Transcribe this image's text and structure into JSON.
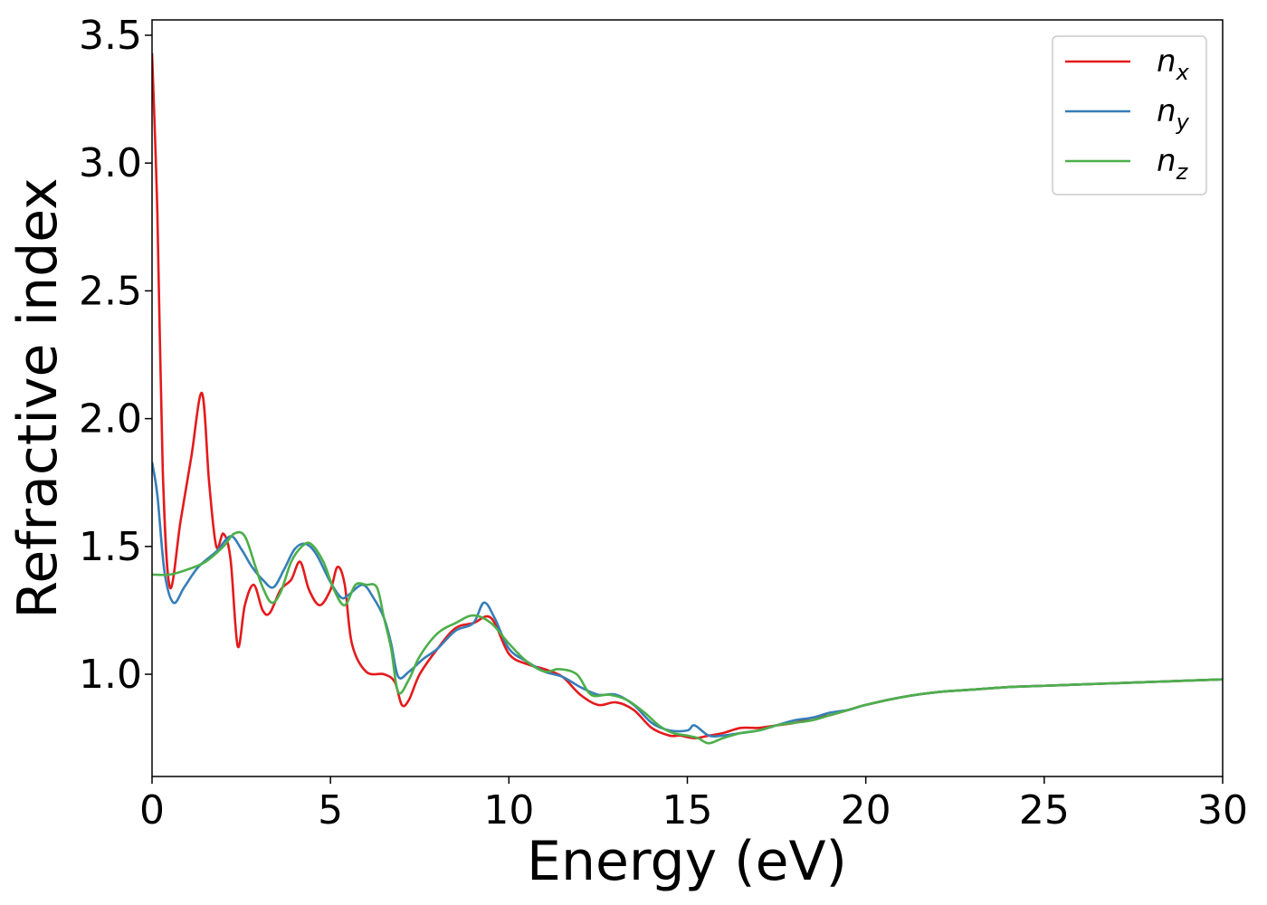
{
  "chart_data": {
    "type": "line",
    "xlabel": "Energy (eV)",
    "ylabel": "Refractive index",
    "xlim": [
      0,
      30
    ],
    "ylim": [
      0.6,
      3.56
    ],
    "xticks": [
      0,
      5,
      10,
      15,
      20,
      25,
      30
    ],
    "yticks": [
      1.0,
      1.5,
      2.0,
      2.5,
      3.0,
      3.5
    ],
    "xtick_labels": [
      "0",
      "5",
      "10",
      "15",
      "20",
      "25",
      "30"
    ],
    "ytick_labels": [
      "1.0",
      "1.5",
      "2.0",
      "2.5",
      "3.0",
      "3.5"
    ],
    "grid": false,
    "legend_position": "top-right",
    "series": [
      {
        "name": "n_x",
        "label_base": "n",
        "label_sub": "x",
        "color": "#e41a1c",
        "x": [
          0,
          0.15,
          0.3,
          0.5,
          0.8,
          1.1,
          1.4,
          1.6,
          1.8,
          2.0,
          2.2,
          2.4,
          2.6,
          2.85,
          3.1,
          3.3,
          3.6,
          3.9,
          4.15,
          4.4,
          4.7,
          5.0,
          5.2,
          5.4,
          5.6,
          6.0,
          6.5,
          6.8,
          7.0,
          7.2,
          7.5,
          8.0,
          8.5,
          9.0,
          9.5,
          10.0,
          10.5,
          11.0,
          11.5,
          12.0,
          12.5,
          13.0,
          13.5,
          14.0,
          14.5,
          14.8,
          15.2,
          15.6,
          16.0,
          16.5,
          17.0,
          17.5,
          18.0,
          18.5,
          19.0,
          19.5,
          20.0,
          21.0,
          22.0,
          23.0,
          24.0,
          25.0,
          26.0,
          27.0,
          28.0,
          29.0,
          30.0
        ],
        "values": [
          3.43,
          2.8,
          1.8,
          1.34,
          1.6,
          1.85,
          2.1,
          1.75,
          1.5,
          1.55,
          1.45,
          1.11,
          1.27,
          1.35,
          1.25,
          1.24,
          1.33,
          1.37,
          1.44,
          1.33,
          1.27,
          1.33,
          1.42,
          1.35,
          1.12,
          1.01,
          1.0,
          0.97,
          0.88,
          0.9,
          1.0,
          1.1,
          1.18,
          1.2,
          1.22,
          1.08,
          1.04,
          1.02,
          0.99,
          0.92,
          0.88,
          0.89,
          0.86,
          0.79,
          0.76,
          0.76,
          0.75,
          0.76,
          0.77,
          0.79,
          0.79,
          0.8,
          0.81,
          0.83,
          0.84,
          0.86,
          0.88,
          0.91,
          0.93,
          0.94,
          0.95,
          0.955,
          0.96,
          0.965,
          0.97,
          0.975,
          0.98
        ]
      },
      {
        "name": "n_y",
        "label_base": "n",
        "label_sub": "y",
        "color": "#377eb8",
        "x": [
          0,
          0.15,
          0.35,
          0.6,
          0.9,
          1.3,
          1.8,
          2.2,
          2.5,
          2.8,
          3.1,
          3.4,
          3.7,
          4.0,
          4.3,
          4.6,
          5.0,
          5.3,
          5.5,
          5.9,
          6.2,
          6.5,
          6.7,
          6.9,
          7.2,
          7.6,
          8.0,
          8.5,
          9.0,
          9.3,
          9.6,
          10.0,
          10.5,
          11.0,
          11.5,
          12.0,
          12.5,
          13.0,
          13.5,
          14.0,
          14.5,
          15.0,
          15.2,
          15.6,
          16.0,
          16.5,
          17.0,
          17.5,
          18.0,
          18.5,
          19.0,
          19.5,
          20.0,
          21.0,
          22.0,
          23.0,
          24.0,
          25.0,
          26.0,
          27.0,
          28.0,
          29.0,
          30.0
        ],
        "values": [
          1.83,
          1.7,
          1.4,
          1.28,
          1.34,
          1.42,
          1.48,
          1.54,
          1.49,
          1.42,
          1.37,
          1.34,
          1.41,
          1.49,
          1.51,
          1.47,
          1.36,
          1.3,
          1.31,
          1.35,
          1.3,
          1.22,
          1.12,
          0.99,
          1.01,
          1.06,
          1.1,
          1.17,
          1.2,
          1.28,
          1.22,
          1.1,
          1.05,
          1.01,
          0.99,
          0.95,
          0.92,
          0.92,
          0.88,
          0.81,
          0.78,
          0.78,
          0.8,
          0.76,
          0.76,
          0.77,
          0.78,
          0.8,
          0.82,
          0.83,
          0.85,
          0.86,
          0.88,
          0.91,
          0.93,
          0.94,
          0.95,
          0.955,
          0.96,
          0.965,
          0.97,
          0.975,
          0.98
        ]
      },
      {
        "name": "n_z",
        "label_base": "n",
        "label_sub": "z",
        "color": "#4daf4a",
        "x": [
          0,
          0.5,
          1.0,
          1.5,
          2.0,
          2.3,
          2.6,
          2.9,
          3.1,
          3.35,
          3.6,
          3.9,
          4.2,
          4.45,
          4.8,
          5.1,
          5.4,
          5.7,
          6.0,
          6.3,
          6.5,
          6.7,
          6.9,
          7.2,
          7.5,
          8.0,
          8.5,
          9.0,
          9.5,
          10.0,
          10.5,
          11.0,
          11.4,
          11.9,
          12.3,
          12.8,
          13.3,
          13.8,
          14.2,
          14.6,
          15.0,
          15.3,
          15.6,
          16.0,
          16.5,
          17.0,
          17.5,
          18.0,
          18.5,
          19.0,
          19.5,
          20.0,
          21.0,
          22.0,
          23.0,
          24.0,
          25.0,
          26.0,
          27.0,
          28.0,
          29.0,
          30.0
        ],
        "values": [
          1.39,
          1.39,
          1.41,
          1.44,
          1.5,
          1.55,
          1.54,
          1.42,
          1.34,
          1.28,
          1.32,
          1.44,
          1.5,
          1.51,
          1.44,
          1.33,
          1.27,
          1.35,
          1.35,
          1.34,
          1.22,
          1.1,
          0.93,
          0.98,
          1.07,
          1.16,
          1.2,
          1.23,
          1.2,
          1.12,
          1.05,
          1.01,
          1.02,
          1.0,
          0.92,
          0.92,
          0.9,
          0.85,
          0.8,
          0.77,
          0.76,
          0.75,
          0.73,
          0.75,
          0.77,
          0.78,
          0.8,
          0.81,
          0.82,
          0.84,
          0.86,
          0.88,
          0.91,
          0.93,
          0.94,
          0.95,
          0.955,
          0.96,
          0.965,
          0.97,
          0.975,
          0.98
        ]
      }
    ]
  }
}
